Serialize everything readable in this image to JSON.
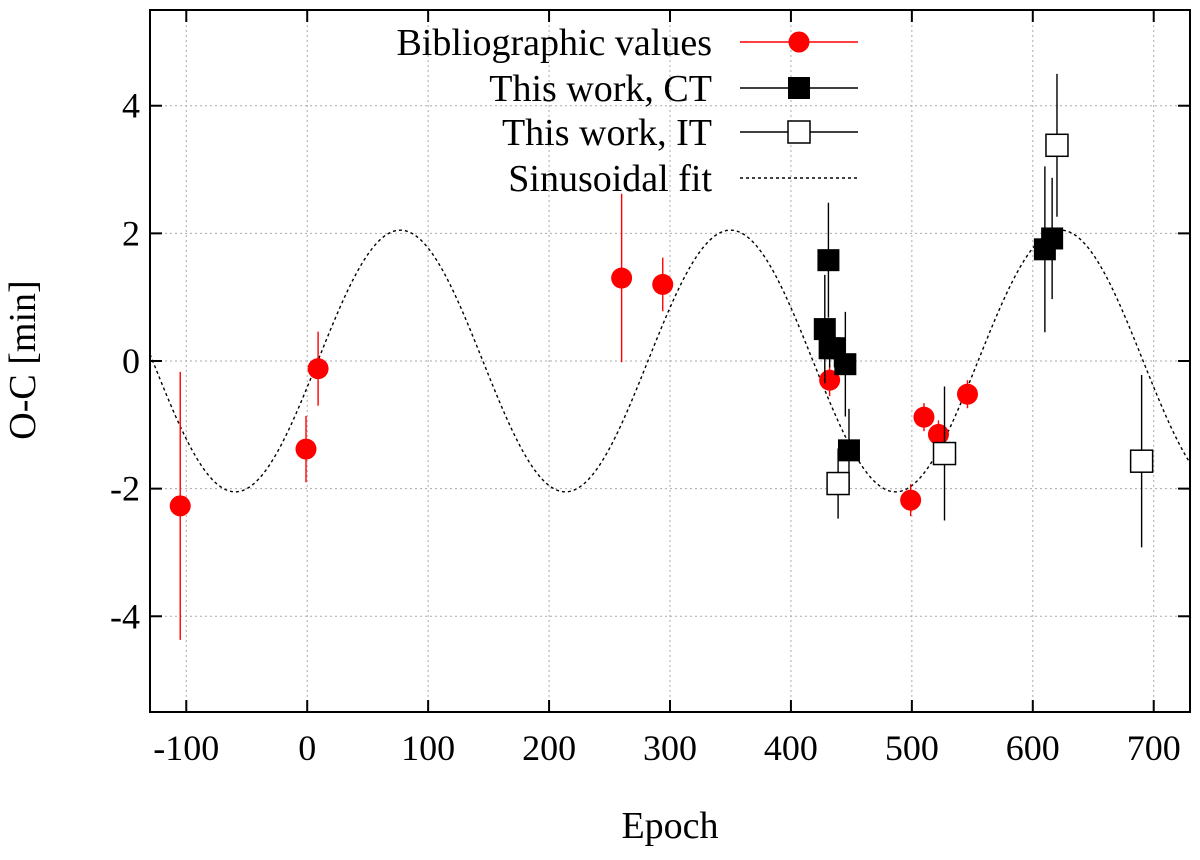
{
  "chart_data": {
    "type": "scatter",
    "title": "",
    "xlabel": "Epoch",
    "ylabel": "O-C [min]",
    "xlim": [
      -130,
      730
    ],
    "ylim": [
      -5.5,
      5.5
    ],
    "xticks": [
      -100,
      0,
      100,
      200,
      300,
      400,
      500,
      600,
      700
    ],
    "yticks": [
      -4,
      -2,
      0,
      2,
      4
    ],
    "grid": true,
    "legend_position": "top-center",
    "colors": {
      "bibliographic": "#ff0000",
      "this_work": "#000000",
      "fit": "#000000"
    },
    "series": [
      {
        "name": "Bibliographic values",
        "marker": "filled-circle",
        "points": [
          {
            "x": -105,
            "y": -2.27,
            "err": 2.1
          },
          {
            "x": -1,
            "y": -1.38,
            "err": 0.52
          },
          {
            "x": 9,
            "y": -0.12,
            "err": 0.58
          },
          {
            "x": 260,
            "y": 1.3,
            "err": 1.32
          },
          {
            "x": 294,
            "y": 1.2,
            "err": 0.42
          },
          {
            "x": 432,
            "y": -0.3,
            "err": 0.25
          },
          {
            "x": 499,
            "y": -2.18,
            "err": 0.25
          },
          {
            "x": 510,
            "y": -0.88,
            "err": 0.22
          },
          {
            "x": 522,
            "y": -1.15,
            "err": 0.22
          },
          {
            "x": 546,
            "y": -0.52,
            "err": 0.22
          }
        ]
      },
      {
        "name": "This work, CT",
        "marker": "filled-square",
        "points": [
          {
            "x": 428,
            "y": 0.5,
            "err": 0.85
          },
          {
            "x": 431,
            "y": 1.58,
            "err": 0.9
          },
          {
            "x": 432,
            "y": 0.2,
            "err": 0.3
          },
          {
            "x": 436,
            "y": 0.2,
            "err": 0.3
          },
          {
            "x": 445,
            "y": -0.05,
            "err": 0.82
          },
          {
            "x": 448,
            "y": -1.4,
            "err": 0.65
          },
          {
            "x": 610,
            "y": 1.75,
            "err": 1.3
          },
          {
            "x": 616,
            "y": 1.92,
            "err": 0.95
          }
        ]
      },
      {
        "name": "This work, IT",
        "marker": "open-square",
        "points": [
          {
            "x": 439,
            "y": -1.92,
            "err": 0.55
          },
          {
            "x": 527,
            "y": -1.45,
            "err": 1.05
          },
          {
            "x": 620,
            "y": 3.38,
            "err": 1.12
          },
          {
            "x": 690,
            "y": -1.57,
            "err": 1.35
          }
        ]
      },
      {
        "name": "Sinusoidal fit",
        "line": "dotted",
        "function": "sinusoid",
        "amplitude": 2.05,
        "period": 273,
        "phase_zero_epoch": 8.75,
        "offset": 0
      }
    ]
  }
}
